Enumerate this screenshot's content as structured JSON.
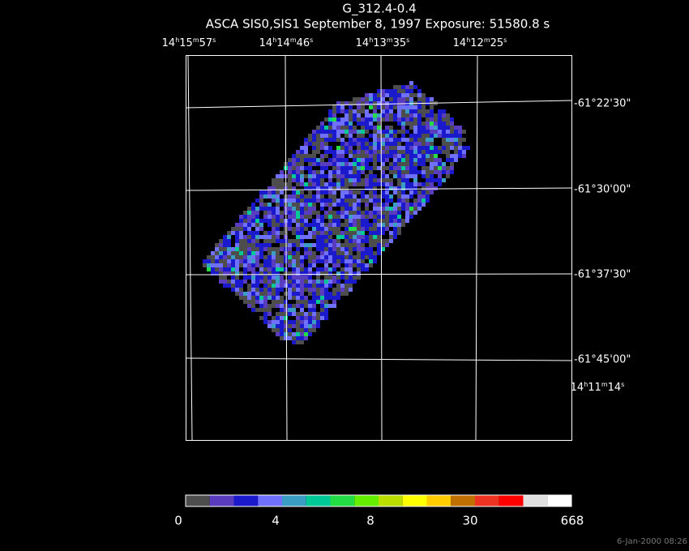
{
  "title": "G_312.4-0.4",
  "subtitle": "ASCA SIS0,SIS1 September 8, 1997 Exposure: 51580.8 s",
  "ra_labels": [
    [
      "14",
      "h",
      "15",
      "m",
      "57",
      "s"
    ],
    [
      "14",
      "h",
      "14",
      "m",
      "46",
      "s"
    ],
    [
      "14",
      "h",
      "13",
      "m",
      "35",
      "s"
    ],
    [
      "14",
      "h",
      "12",
      "m",
      "25",
      "s"
    ],
    [
      "14",
      "h",
      "11",
      "m",
      "14",
      "s"
    ]
  ],
  "dec_labels": [
    "-61°22'30\"",
    "-61°30'00\"",
    "-61°37'30\"",
    "-61°45'00\""
  ],
  "colorbar": {
    "colors": [
      "#4d4d4d",
      "#5a3cbf",
      "#1a1acc",
      "#7070ff",
      "#3a9ec4",
      "#00c896",
      "#22dd44",
      "#66ee00",
      "#bbdd00",
      "#ffff00",
      "#ffcc00",
      "#c07000",
      "#ee3322",
      "#ff0000",
      "#e0e0e0",
      "#ffffff"
    ],
    "labels": [
      0,
      4,
      8,
      30,
      668
    ]
  },
  "footer": "6-Jan-2000 08:26"
}
